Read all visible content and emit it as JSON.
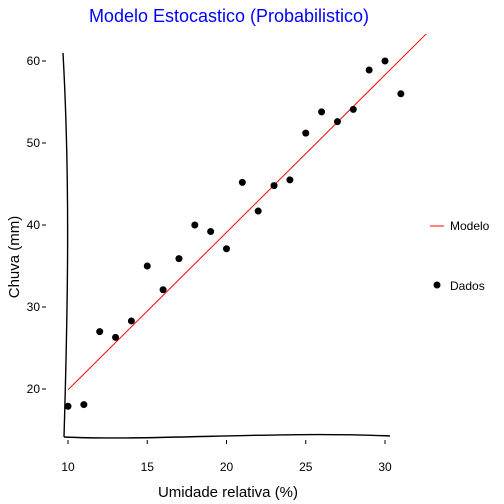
{
  "chart_data": {
    "type": "scatter",
    "title": "Modelo Estocastico (Probabilistico)",
    "title_color": "#0000ff",
    "xlabel": "Umidade relativa (%)",
    "ylabel": "Chuva (mm)",
    "xlim": [
      9.5,
      33
    ],
    "ylim": [
      14,
      63
    ],
    "x_ticks": [
      10,
      15,
      20,
      25,
      30
    ],
    "y_ticks": [
      20,
      30,
      40,
      50,
      60
    ],
    "grid": false,
    "legend_position": "right",
    "series": [
      {
        "name": "Dados",
        "kind": "points",
        "color": "#000000",
        "x": [
          10,
          11,
          12,
          13,
          14,
          15,
          16,
          17,
          18,
          19,
          20,
          21,
          22,
          23,
          24,
          25,
          26,
          27,
          28,
          29,
          30,
          31
        ],
        "y": [
          17.9,
          18.1,
          27.0,
          26.3,
          28.3,
          35.0,
          32.1,
          35.9,
          40.0,
          39.2,
          37.1,
          45.2,
          41.7,
          44.8,
          45.5,
          51.2,
          53.8,
          52.6,
          54.1,
          58.9,
          60.0,
          56.0
        ]
      },
      {
        "name": "Modelo",
        "kind": "line",
        "color": "#ff0000",
        "x": [
          10,
          32.6
        ],
        "y": [
          19.9,
          63.3
        ]
      }
    ]
  }
}
